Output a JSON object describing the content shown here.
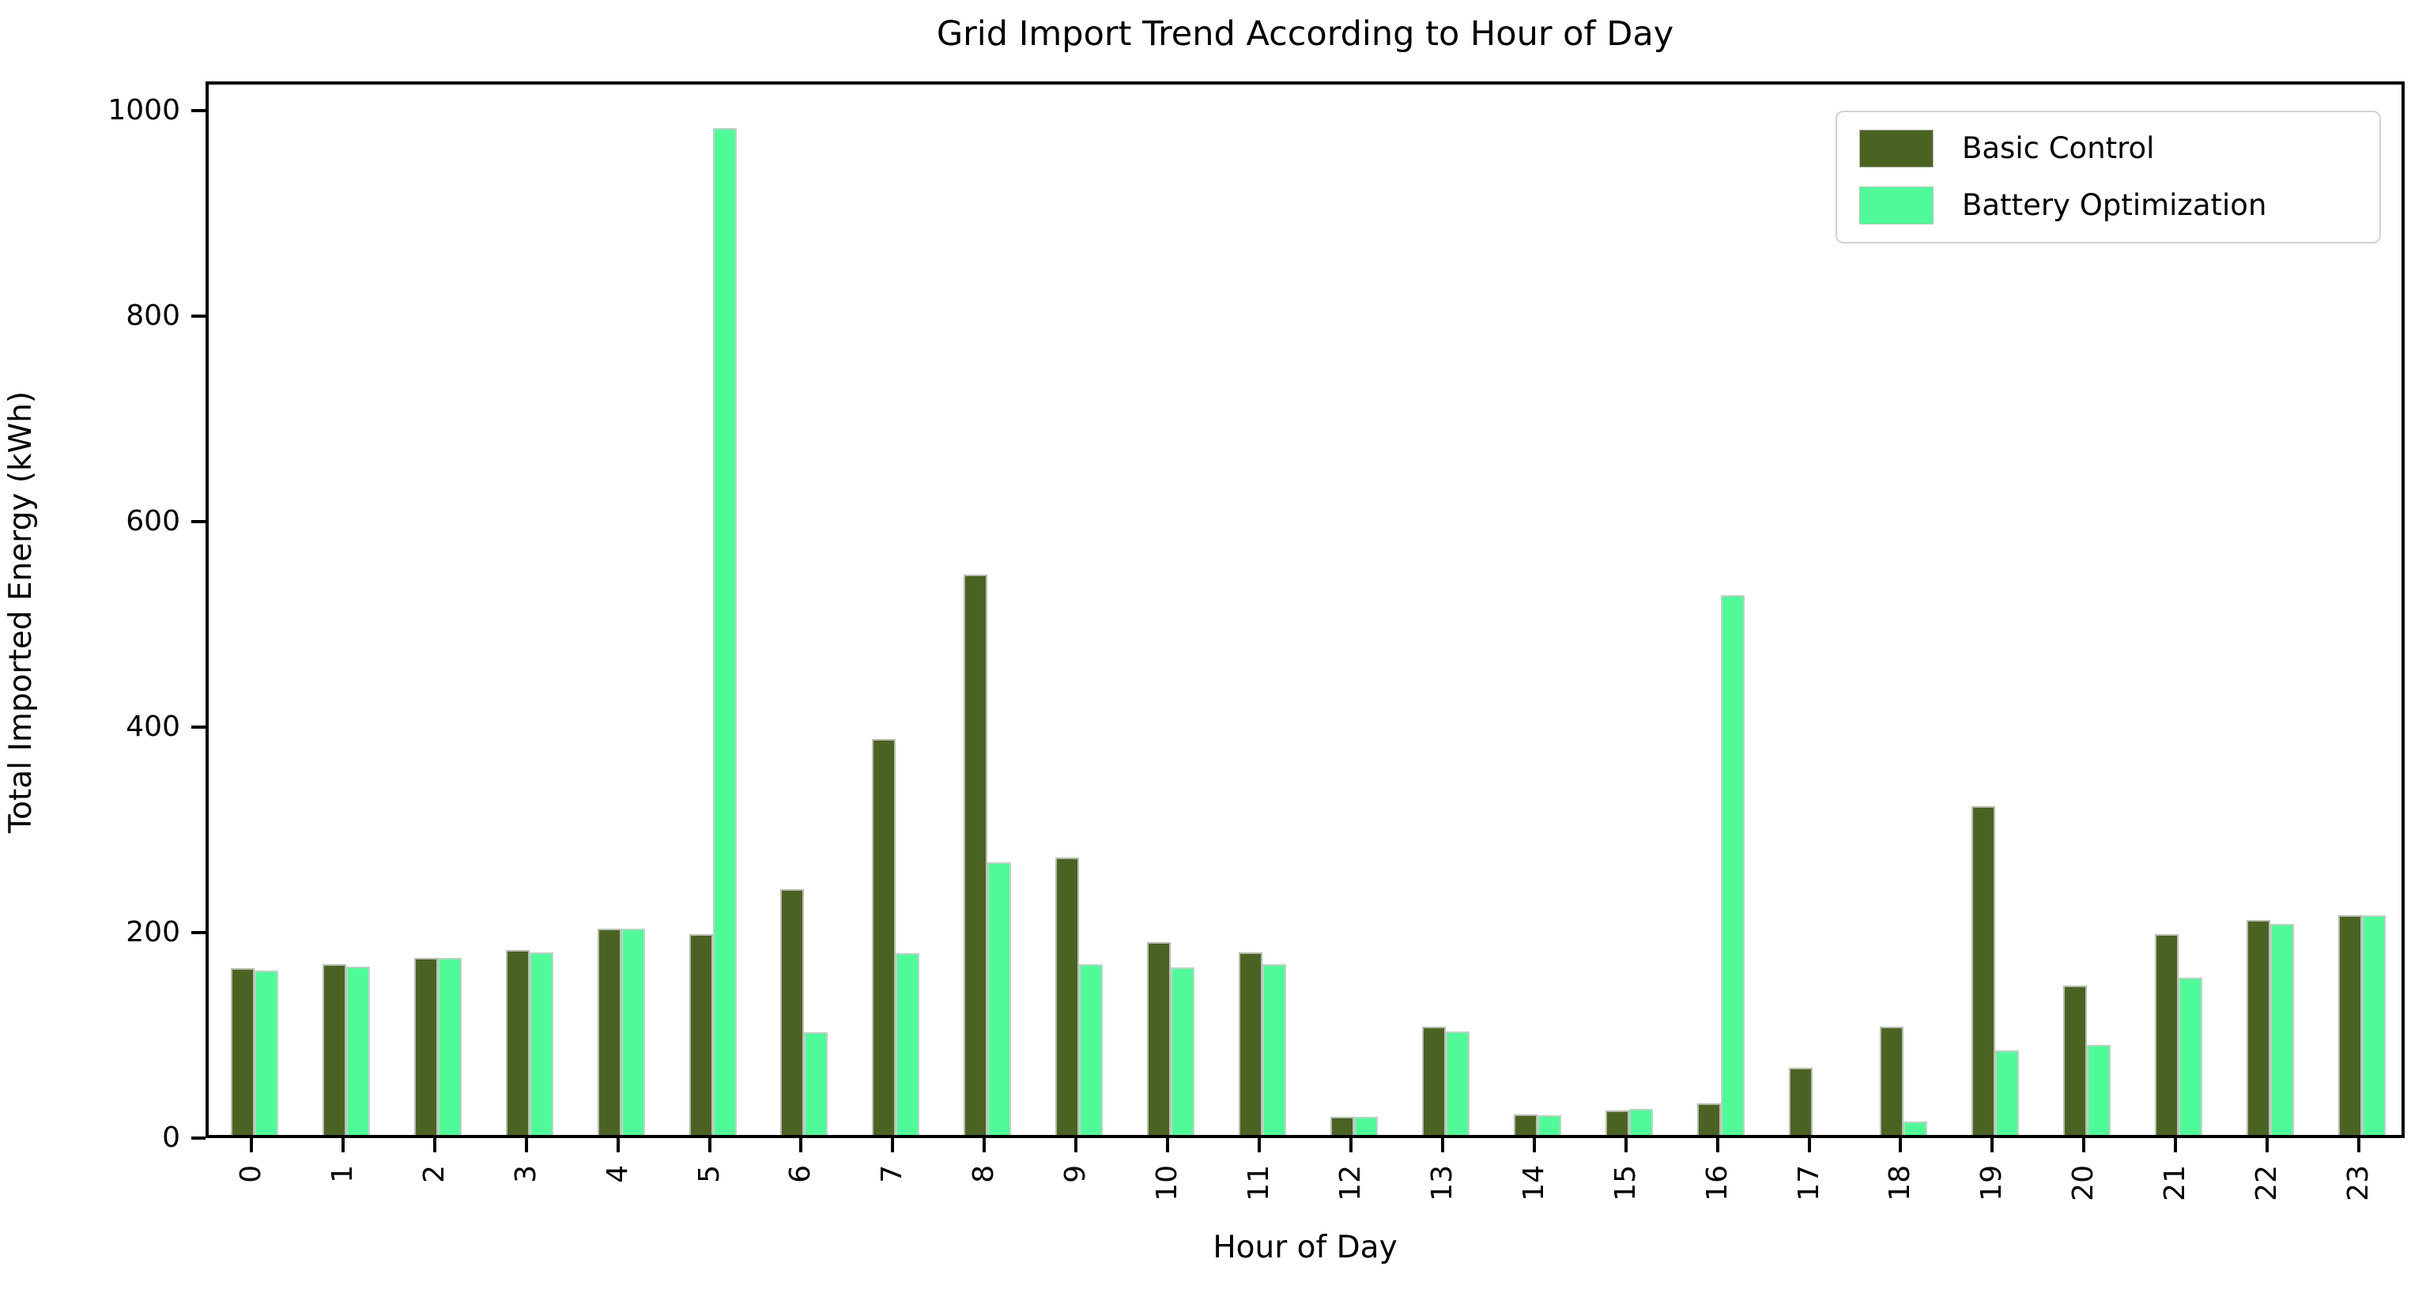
{
  "chart_data": {
    "type": "bar",
    "title": "Grid Import Trend According to Hour of Day",
    "xlabel": "Hour of Day",
    "ylabel": "Total Imported Energy (kWh)",
    "categories": [
      "0",
      "1",
      "2",
      "3",
      "4",
      "5",
      "6",
      "7",
      "8",
      "9",
      "10",
      "11",
      "12",
      "13",
      "14",
      "15",
      "16",
      "17",
      "18",
      "19",
      "20",
      "21",
      "22",
      "23"
    ],
    "series": [
      {
        "name": "Basic Control",
        "color": "#4b6322",
        "values": [
          162,
          166,
          172,
          180,
          201,
          195,
          239,
          385,
          545,
          270,
          188,
          178,
          18,
          105,
          20,
          24,
          31,
          65,
          105,
          320,
          145,
          195,
          209,
          214
        ]
      },
      {
        "name": "Battery Optimization",
        "color": "#50fa98",
        "values": [
          160,
          164,
          172,
          178,
          201,
          980,
          100,
          177,
          265,
          166,
          163,
          166,
          18,
          101,
          19,
          25,
          525,
          0,
          13,
          82,
          88,
          153,
          205,
          214
        ]
      }
    ],
    "yticks": [
      0,
      200,
      400,
      600,
      800,
      1000
    ],
    "ylim": [
      0,
      1028
    ],
    "grid": false,
    "legend_position": "upper right"
  }
}
